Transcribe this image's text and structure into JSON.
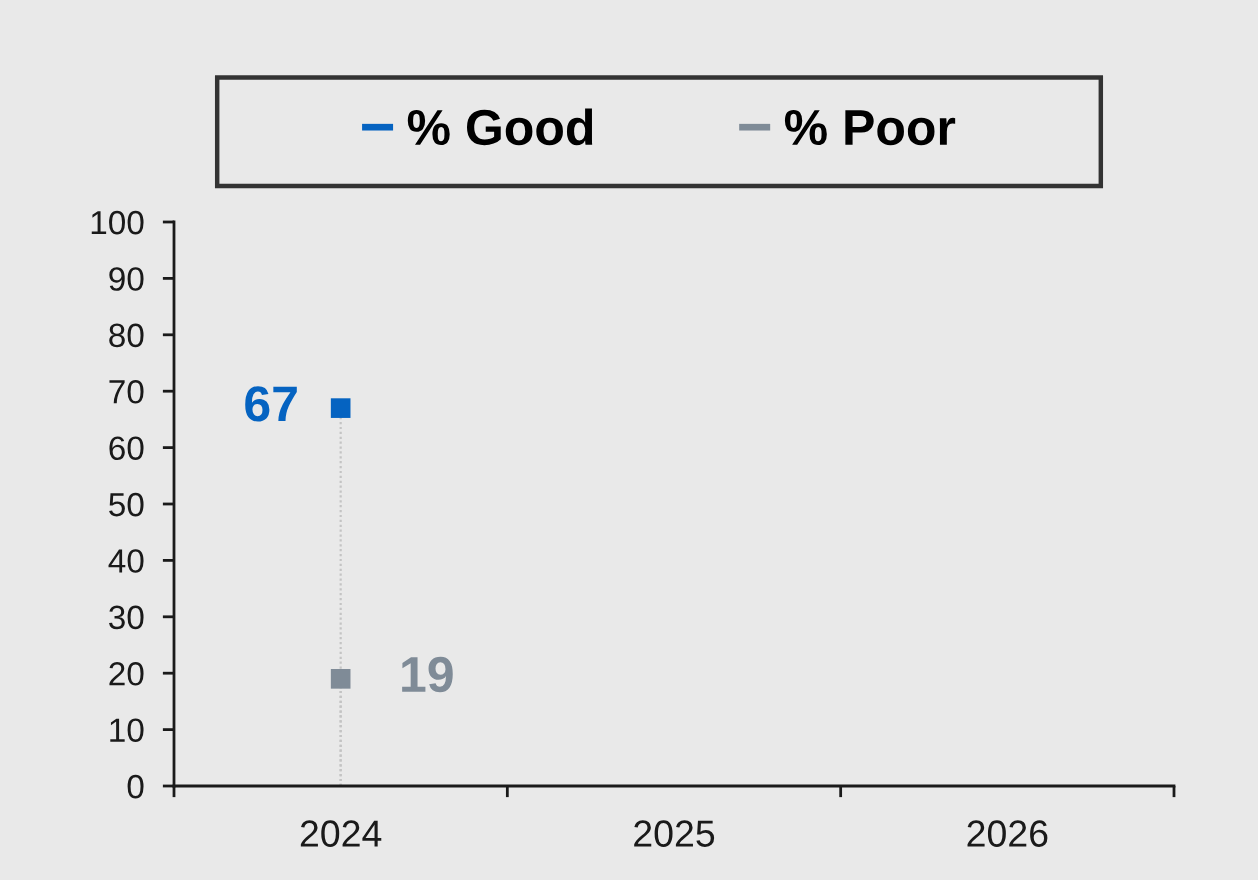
{
  "chart_data": {
    "type": "lollipop",
    "categories": [
      "2024",
      "2025",
      "2026"
    ],
    "ylim": [
      0,
      100
    ],
    "yticks": [
      0,
      10,
      20,
      30,
      40,
      50,
      60,
      70,
      80,
      90,
      100
    ],
    "legend": "top",
    "marker": "square",
    "line_style": "dotted",
    "data_labels": true,
    "series": [
      {
        "name": "% Good",
        "color": "#0563c1",
        "values": [
          67,
          null,
          null
        ]
      },
      {
        "name": "% Poor",
        "color": "#7f8b97",
        "values": [
          19,
          null,
          null
        ]
      }
    ]
  }
}
